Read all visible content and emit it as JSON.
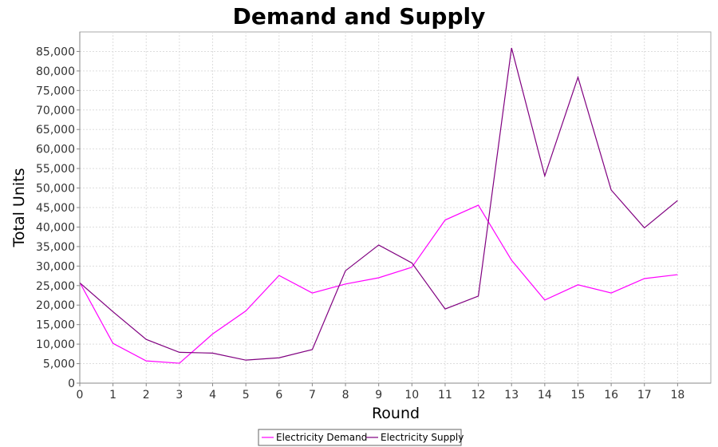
{
  "chart_data": {
    "type": "line",
    "title": "Demand and Supply",
    "xlabel": "Round",
    "ylabel": "Total Units",
    "x": [
      0,
      1,
      2,
      3,
      4,
      5,
      6,
      7,
      8,
      9,
      10,
      11,
      12,
      13,
      14,
      15,
      16,
      17,
      18
    ],
    "xlim": [
      0,
      19
    ],
    "ylim": [
      0,
      90000
    ],
    "yticks": [
      0,
      5000,
      10000,
      15000,
      20000,
      25000,
      30000,
      35000,
      40000,
      45000,
      50000,
      55000,
      60000,
      65000,
      70000,
      75000,
      80000,
      85000
    ],
    "ytick_labels": [
      "0",
      "5,000",
      "10,000",
      "15,000",
      "20,000",
      "25,000",
      "30,000",
      "35,000",
      "40,000",
      "45,000",
      "50,000",
      "55,000",
      "60,000",
      "65,000",
      "70,000",
      "75,000",
      "80,000",
      "85,000"
    ],
    "grid": true,
    "legend_position": "bottom",
    "series": [
      {
        "name": "Electricity Demand",
        "color": "#ff00ff",
        "values": [
          25800,
          10200,
          5700,
          5100,
          12600,
          18500,
          27600,
          23100,
          25400,
          27000,
          29700,
          41800,
          45600,
          31500,
          21300,
          25200,
          23100,
          26800,
          27800
        ]
      },
      {
        "name": "Electricity Supply",
        "color": "#800080",
        "values": [
          25700,
          18300,
          11200,
          7900,
          7700,
          5900,
          6500,
          8600,
          28800,
          35400,
          30800,
          19000,
          22300,
          85900,
          53100,
          78400,
          49500,
          39800,
          46800
        ]
      }
    ]
  }
}
